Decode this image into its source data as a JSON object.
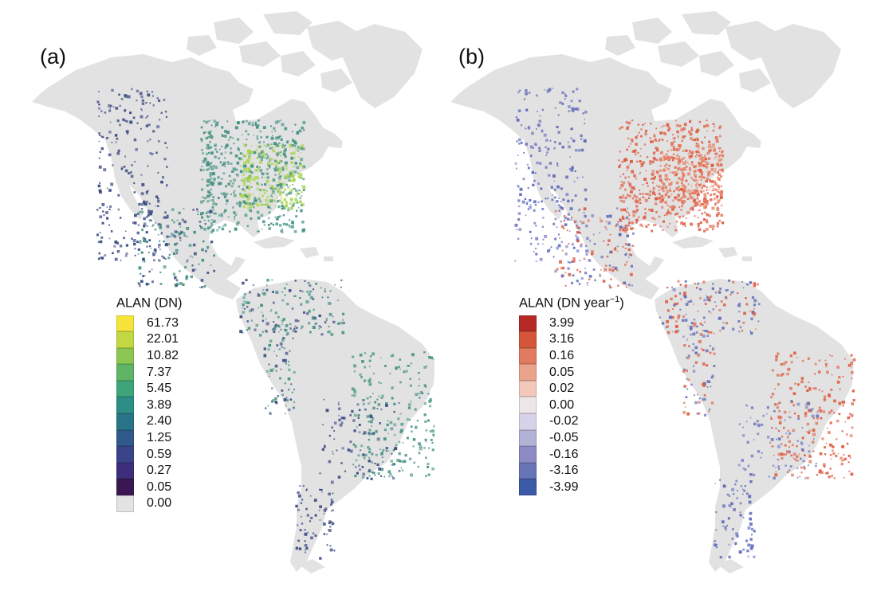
{
  "colors": {
    "land": "#e2e2e2",
    "background": "#ffffff"
  },
  "panels": [
    {
      "label": "(a)",
      "legend": {
        "title": "ALAN (DN)",
        "title_superscript": "",
        "title_suffix": "",
        "entries": [
          {
            "value": "61.73",
            "color": "#f6e43b"
          },
          {
            "value": "22.01",
            "color": "#c2d843"
          },
          {
            "value": "10.82",
            "color": "#8cc754"
          },
          {
            "value": "7.37",
            "color": "#5fb466"
          },
          {
            "value": "5.45",
            "color": "#3ea57b"
          },
          {
            "value": "3.89",
            "color": "#2c8e86"
          },
          {
            "value": "2.40",
            "color": "#2a7488"
          },
          {
            "value": "1.25",
            "color": "#2f5a8a"
          },
          {
            "value": "0.59",
            "color": "#394489"
          },
          {
            "value": "0.27",
            "color": "#3c2e7a"
          },
          {
            "value": "0.05",
            "color": "#3a1752"
          },
          {
            "value": "0.00",
            "color": "#e3e3e3"
          }
        ]
      },
      "overlay": {
        "primary": "#3e8f7e",
        "bright": "#a8d54a",
        "dark": "#33427e",
        "secondary": "#33427e"
      }
    },
    {
      "label": "(b)",
      "legend": {
        "title": "ALAN (DN year",
        "title_superscript": "−1",
        "title_suffix": ")",
        "entries": [
          {
            "value": "3.99",
            "color": "#b52a26"
          },
          {
            "value": "3.16",
            "color": "#d3563a"
          },
          {
            "value": "0.16",
            "color": "#e07b5f"
          },
          {
            "value": "0.05",
            "color": "#eba28b"
          },
          {
            "value": "0.02",
            "color": "#f1c8ba"
          },
          {
            "value": "0.00",
            "color": "#ece6e8"
          },
          {
            "value": "-0.02",
            "color": "#d6d3e8"
          },
          {
            "value": "-0.05",
            "color": "#b4b1d6"
          },
          {
            "value": "-0.16",
            "color": "#8e8bc4"
          },
          {
            "value": "-3.16",
            "color": "#6774b6"
          },
          {
            "value": "-3.99",
            "color": "#3c5aa8"
          }
        ]
      },
      "overlay": {
        "primary": "#dd5a3e",
        "bright": "#e87a5c",
        "dark": "#5b66b8",
        "secondary": "#6b74c0"
      }
    }
  ]
}
